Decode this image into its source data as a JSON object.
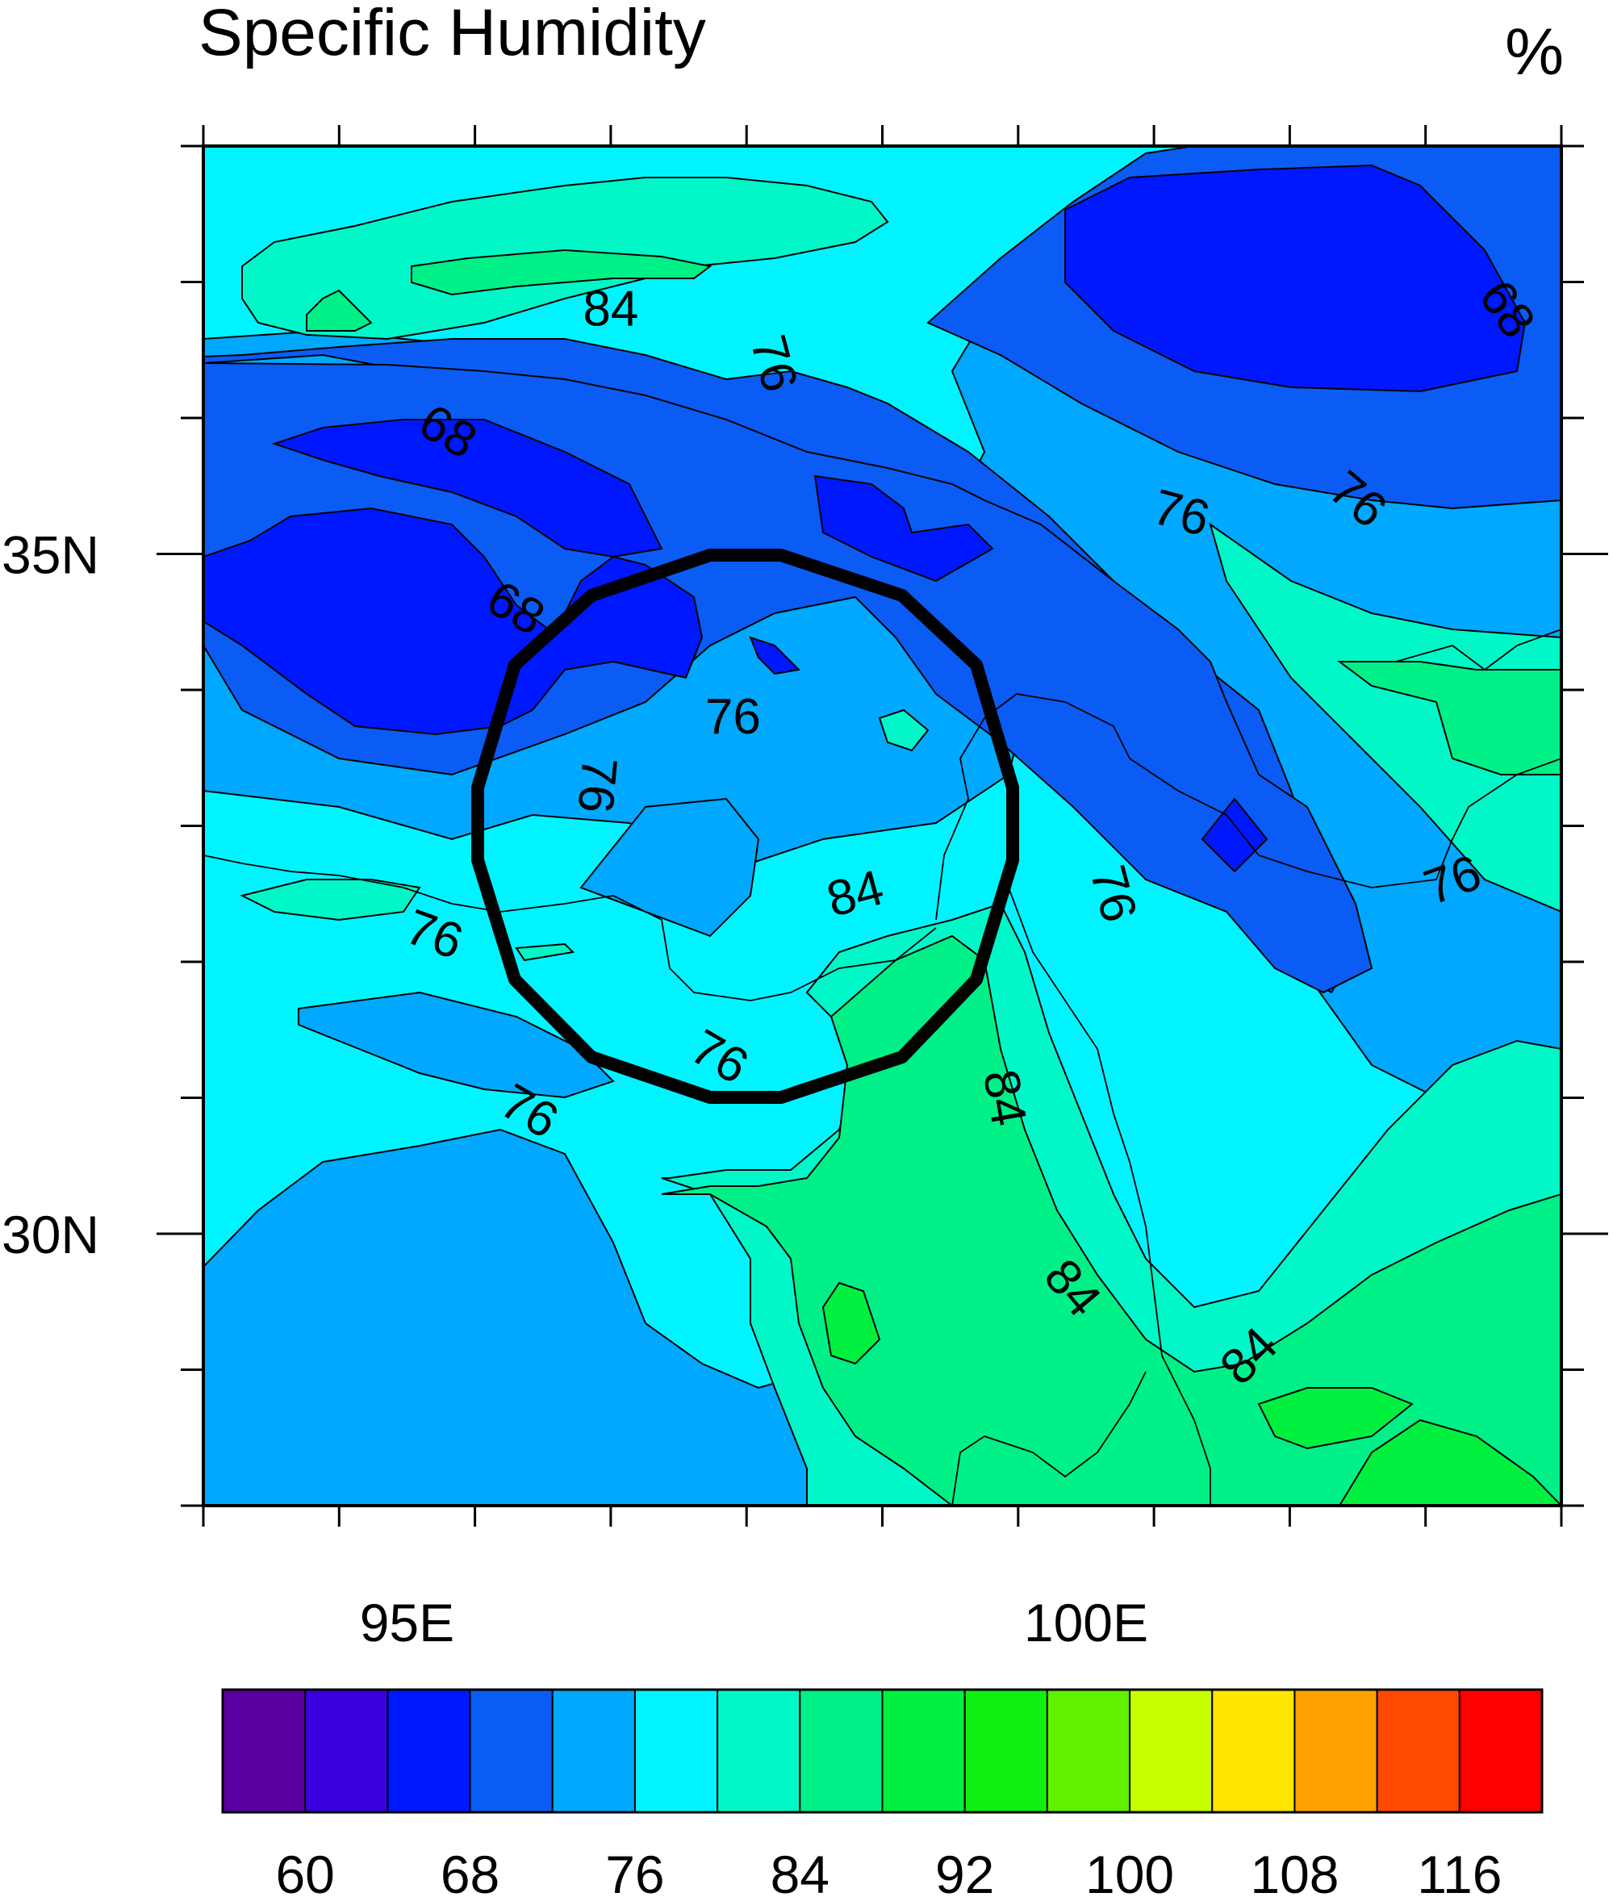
{
  "title": "Specific Humidity",
  "units": "%",
  "map": {
    "lon_range": [
      93.5,
      103.5
    ],
    "lat_range": [
      28.0,
      38.0
    ],
    "x_ticks": [
      {
        "value": 95,
        "label": "95E"
      },
      {
        "value": 100,
        "label": "100E"
      }
    ],
    "y_ticks": [
      {
        "value": 35,
        "label": "35N"
      },
      {
        "value": 30,
        "label": "30N"
      }
    ],
    "contour_labels": [
      {
        "text": "84",
        "lon": 96.5,
        "lat": 36.8,
        "angle": 0
      },
      {
        "text": "76",
        "lon": 97.7,
        "lat": 36.4,
        "angle": 75
      },
      {
        "text": "68",
        "lon": 103.1,
        "lat": 36.8,
        "angle": 55
      },
      {
        "text": "68",
        "lon": 95.3,
        "lat": 35.9,
        "angle": 30
      },
      {
        "text": "76",
        "lon": 100.7,
        "lat": 35.3,
        "angle": 15
      },
      {
        "text": "76",
        "lon": 102.0,
        "lat": 35.4,
        "angle": 40
      },
      {
        "text": "68",
        "lon": 95.8,
        "lat": 34.6,
        "angle": 30
      },
      {
        "text": "76",
        "lon": 97.4,
        "lat": 33.8,
        "angle": 0
      },
      {
        "text": "76",
        "lon": 96.4,
        "lat": 33.3,
        "angle": 95
      },
      {
        "text": "84",
        "lon": 98.3,
        "lat": 32.5,
        "angle": -15
      },
      {
        "text": "76",
        "lon": 100.2,
        "lat": 32.5,
        "angle": 75
      },
      {
        "text": "76",
        "lon": 102.7,
        "lat": 32.6,
        "angle": -20
      },
      {
        "text": "76",
        "lon": 95.2,
        "lat": 32.2,
        "angle": 20
      },
      {
        "text": "76",
        "lon": 97.3,
        "lat": 31.3,
        "angle": 30
      },
      {
        "text": "84",
        "lon": 99.4,
        "lat": 31.0,
        "angle": 80
      },
      {
        "text": "76",
        "lon": 95.9,
        "lat": 30.9,
        "angle": 30
      },
      {
        "text": "84",
        "lon": 99.9,
        "lat": 29.6,
        "angle": 50
      },
      {
        "text": "84",
        "lon": 101.2,
        "lat": 29.1,
        "angle": -45
      }
    ],
    "colorbar": {
      "colors": [
        "#5a00a0",
        "#3a00e0",
        "#0018ff",
        "#0a5cf5",
        "#00a8ff",
        "#00f4ff",
        "#00f8c8",
        "#00f088",
        "#00f040",
        "#10f010",
        "#60f000",
        "#c8ff00",
        "#ffe600",
        "#ffa200",
        "#ff4800",
        "#ff0000"
      ],
      "labels": [
        {
          "text": "60",
          "index": 1
        },
        {
          "text": "68",
          "index": 3
        },
        {
          "text": "76",
          "index": 5
        },
        {
          "text": "84",
          "index": 7
        },
        {
          "text": "92",
          "index": 9
        },
        {
          "text": "100",
          "index": 11
        },
        {
          "text": "108",
          "index": 13
        },
        {
          "text": "116",
          "index": 15
        }
      ]
    }
  }
}
